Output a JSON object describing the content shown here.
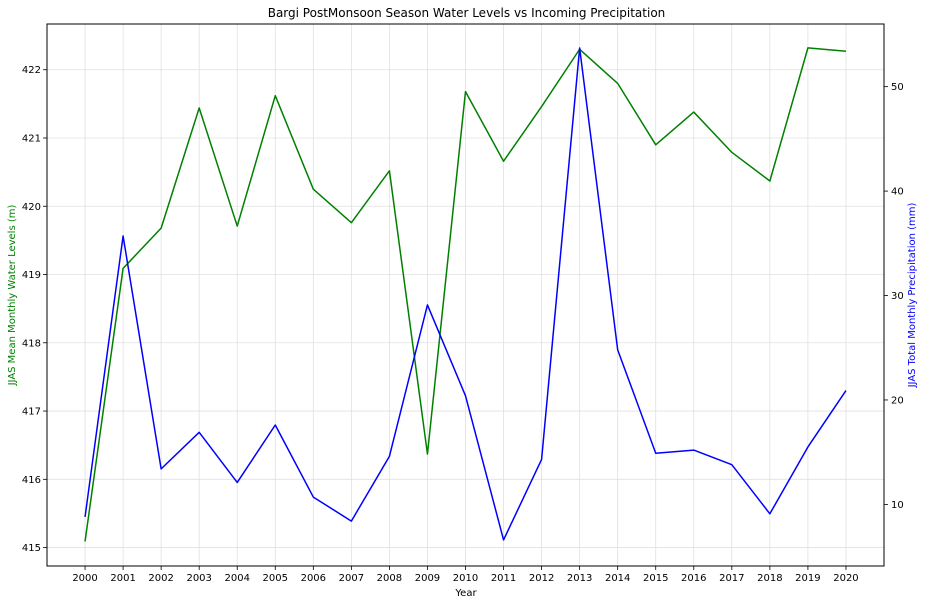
{
  "chart_data": {
    "type": "line",
    "title": "Bargi PostMonsoon Season Water Levels vs Incoming Precipitation",
    "xlabel": "Year",
    "ylabel_left": "JJAS Mean Monthly Water Levels (m)",
    "ylabel_right": "JJAS Total Monthly Precipitation (mm)",
    "x": [
      2000,
      2001,
      2002,
      2003,
      2004,
      2005,
      2006,
      2007,
      2008,
      2009,
      2010,
      2011,
      2012,
      2013,
      2014,
      2015,
      2016,
      2017,
      2018,
      2019,
      2020
    ],
    "x_ticks": [
      "2000",
      "2001",
      "2002",
      "2003",
      "2004",
      "2005",
      "2006",
      "2007",
      "2008",
      "2009",
      "2010",
      "2011",
      "2012",
      "2013",
      "2014",
      "2015",
      "2016",
      "2017",
      "2018",
      "2019",
      "2020"
    ],
    "xlim": [
      1999,
      2021
    ],
    "ylim_left": [
      414.73,
      422.67
    ],
    "ylim_right": [
      4.1,
      56.0
    ],
    "y_ticks_left": [
      415,
      416,
      417,
      418,
      419,
      420,
      421,
      422
    ],
    "y_ticks_right": [
      10,
      20,
      30,
      40,
      50
    ],
    "grid": true,
    "series": [
      {
        "axis": "left",
        "color": "#008000",
        "values": [
          415.09,
          419.09,
          419.68,
          421.44,
          419.71,
          421.62,
          420.25,
          419.76,
          420.52,
          416.37,
          421.68,
          420.66,
          421.46,
          422.3,
          421.8,
          420.9,
          421.38,
          420.79,
          420.37,
          422.32,
          422.27
        ]
      },
      {
        "axis": "right",
        "color": "#0000ff",
        "values": [
          8.8,
          35.7,
          13.4,
          16.9,
          12.1,
          17.6,
          10.7,
          8.4,
          14.6,
          29.1,
          20.4,
          6.6,
          14.3,
          53.7,
          24.8,
          14.9,
          15.2,
          13.8,
          9.1,
          15.5,
          20.9
        ]
      }
    ]
  }
}
